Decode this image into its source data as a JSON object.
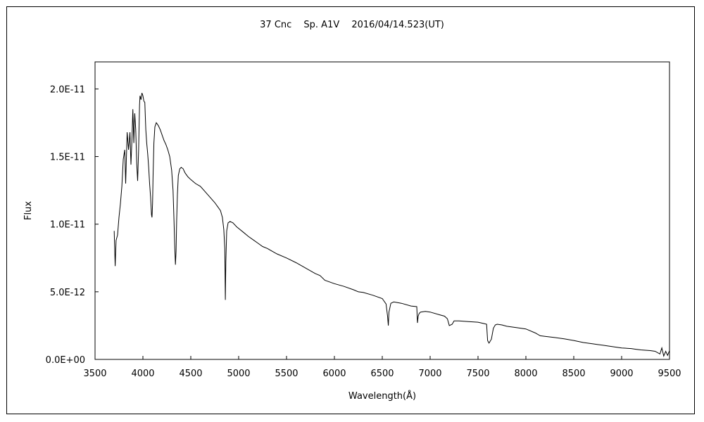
{
  "chart_data": {
    "type": "line",
    "title": "37 Cnc　 Sp. A1V　 2016/04/14.523(UT)",
    "xlabel": "Wavelength(Å)",
    "ylabel": "Flux",
    "xlim": [
      3500,
      9500
    ],
    "ylim": [
      0,
      2.2e-11
    ],
    "xticks": [
      3500,
      4000,
      4500,
      5000,
      5500,
      6000,
      6500,
      7000,
      7500,
      8000,
      8500,
      9000,
      9500
    ],
    "xtick_labels": [
      "3500",
      "4000",
      "4500",
      "5000",
      "5500",
      "6000",
      "6500",
      "7000",
      "7500",
      "8000",
      "8500",
      "9000",
      "9500"
    ],
    "yticks": [
      0,
      5e-12,
      1e-11,
      1.5e-11,
      2e-11
    ],
    "ytick_labels": [
      "0.0E+00",
      "5.0E-12",
      "1.0E-11",
      "1.5E-11",
      "2.0E-11"
    ],
    "grid": false,
    "series": [
      {
        "color": "#000000",
        "x": [
          3700,
          3710,
          3720,
          3735,
          3750,
          3765,
          3780,
          3795,
          3810,
          3820,
          3835,
          3850,
          3865,
          3875,
          3885,
          3895,
          3905,
          3915,
          3925,
          3935,
          3945,
          3955,
          3965,
          3970,
          3980,
          3990,
          4000,
          4010,
          4020,
          4030,
          4040,
          4050,
          4060,
          4070,
          4080,
          4090,
          4095,
          4101,
          4106,
          4115,
          4125,
          4140,
          4160,
          4180,
          4200,
          4220,
          4240,
          4260,
          4280,
          4300,
          4315,
          4325,
          4333,
          4340,
          4346,
          4352,
          4360,
          4370,
          4385,
          4400,
          4420,
          4440,
          4470,
          4500,
          4550,
          4600,
          4650,
          4700,
          4750,
          4780,
          4810,
          4830,
          4845,
          4855,
          4861,
          4866,
          4875,
          4890,
          4910,
          4940,
          4980,
          5050,
          5100,
          5150,
          5200,
          5250,
          5300,
          5350,
          5400,
          5500,
          5600,
          5700,
          5800,
          5850,
          5900,
          6000,
          6100,
          6200,
          6250,
          6300,
          6400,
          6500,
          6540,
          6555,
          6563,
          6570,
          6590,
          6620,
          6700,
          6800,
          6860,
          6868,
          6875,
          6885,
          6900,
          6950,
          7000,
          7100,
          7150,
          7180,
          7200,
          7230,
          7250,
          7300,
          7400,
          7500,
          7560,
          7590,
          7600,
          7615,
          7640,
          7660,
          7680,
          7700,
          7750,
          7800,
          7900,
          8000,
          8100,
          8150,
          8200,
          8300,
          8400,
          8500,
          8600,
          8700,
          8750,
          8800,
          8900,
          9000,
          9100,
          9150,
          9200,
          9300,
          9350,
          9400,
          9420,
          9440,
          9460,
          9480,
          9500
        ],
        "y": [
          9.5e-12,
          6.9e-12,
          8.8e-12,
          9.2e-12,
          1.05e-11,
          1.15e-11,
          1.28e-11,
          1.48e-11,
          1.55e-11,
          1.3e-11,
          1.68e-11,
          1.55e-11,
          1.68e-11,
          1.44e-11,
          1.62e-11,
          1.85e-11,
          1.6e-11,
          1.82e-11,
          1.7e-11,
          1.45e-11,
          1.32e-11,
          1.55e-11,
          1.88e-11,
          1.95e-11,
          1.92e-11,
          1.97e-11,
          1.95e-11,
          1.91e-11,
          1.9e-11,
          1.7e-11,
          1.6e-11,
          1.52e-11,
          1.42e-11,
          1.3e-11,
          1.2e-11,
          1.07e-11,
          1.05e-11,
          1.15e-11,
          1.35e-11,
          1.6e-11,
          1.72e-11,
          1.75e-11,
          1.73e-11,
          1.7e-11,
          1.66e-11,
          1.62e-11,
          1.59e-11,
          1.55e-11,
          1.5e-11,
          1.4e-11,
          1.25e-11,
          1.02e-11,
          8.2e-12,
          7e-12,
          8e-12,
          1.02e-11,
          1.22e-11,
          1.36e-11,
          1.41e-11,
          1.42e-11,
          1.41e-11,
          1.38e-11,
          1.35e-11,
          1.33e-11,
          1.3e-11,
          1.28e-11,
          1.24e-11,
          1.2e-11,
          1.16e-11,
          1.13e-11,
          1.1e-11,
          1.05e-11,
          9.6e-12,
          8.2e-12,
          4.4e-12,
          7.2e-12,
          9.5e-12,
          1.01e-11,
          1.02e-11,
          1.01e-11,
          9.8e-12,
          9.4e-12,
          9.1e-12,
          8.85e-12,
          8.6e-12,
          8.35e-12,
          8.2e-12,
          8e-12,
          7.8e-12,
          7.5e-12,
          7.15e-12,
          6.75e-12,
          6.35e-12,
          6.2e-12,
          5.85e-12,
          5.6e-12,
          5.4e-12,
          5.15e-12,
          5e-12,
          4.95e-12,
          4.75e-12,
          4.5e-12,
          4.1e-12,
          3.2e-12,
          2.5e-12,
          3.5e-12,
          4.15e-12,
          4.25e-12,
          4.15e-12,
          3.95e-12,
          3.9e-12,
          2.7e-12,
          3.2e-12,
          3.4e-12,
          3.5e-12,
          3.55e-12,
          3.5e-12,
          3.3e-12,
          3.2e-12,
          3e-12,
          2.5e-12,
          2.6e-12,
          2.85e-12,
          2.85e-12,
          2.8e-12,
          2.75e-12,
          2.65e-12,
          2.6e-12,
          1.4e-12,
          1.2e-12,
          1.5e-12,
          2.3e-12,
          2.55e-12,
          2.6e-12,
          2.55e-12,
          2.45e-12,
          2.35e-12,
          2.25e-12,
          1.95e-12,
          1.75e-12,
          1.7e-12,
          1.62e-12,
          1.52e-12,
          1.4e-12,
          1.25e-12,
          1.15e-12,
          1.1e-12,
          1.05e-12,
          9.5e-13,
          8.5e-13,
          8e-13,
          7.5e-13,
          7e-13,
          6.5e-13,
          6e-13,
          4e-13,
          8.5e-13,
          2.5e-13,
          6e-13,
          3e-13,
          6.5e-13
        ]
      }
    ]
  }
}
